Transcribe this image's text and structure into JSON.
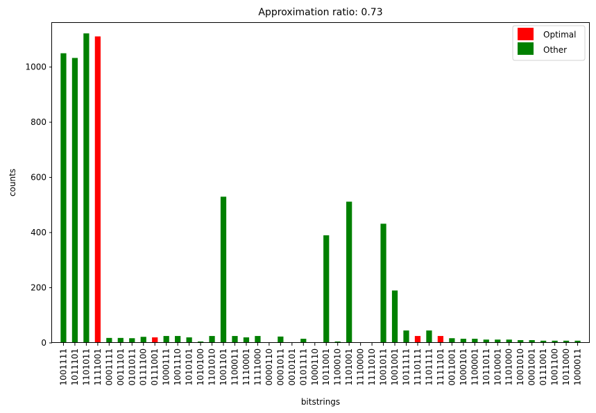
{
  "chart_data": {
    "type": "bar",
    "title": "Approximation ratio: 0.73",
    "xlabel": "bitstrings",
    "ylabel": "counts",
    "ylim": [
      0,
      1160
    ],
    "yticks": [
      0,
      200,
      400,
      600,
      800,
      1000
    ],
    "categories": [
      "1001111",
      "1011101",
      "1101011",
      "1111001",
      "0001111",
      "0011101",
      "0101011",
      "0111100",
      "0111001",
      "1000111",
      "1001110",
      "1010101",
      "1010100",
      "1101010",
      "1001101",
      "1100011",
      "1110001",
      "1111000",
      "0000110",
      "0001011",
      "0010101",
      "0101111",
      "1000110",
      "1011001",
      "1100010",
      "1101001",
      "1110000",
      "1111010",
      "1001011",
      "1001001",
      "1011111",
      "1110111",
      "1101111",
      "1111101",
      "0011001",
      "1000101",
      "1100001",
      "1011011",
      "1010001",
      "1101000",
      "1001010",
      "0001001",
      "0111001",
      "1001100",
      "1011000",
      "1000011"
    ],
    "values": [
      1050,
      1033,
      1122,
      1111,
      18,
      18,
      17,
      22,
      20,
      25,
      25,
      20,
      5,
      25,
      530,
      25,
      20,
      25,
      2,
      23,
      2,
      15,
      2,
      390,
      5,
      512,
      2,
      2,
      432,
      190,
      45,
      25,
      45,
      25,
      17,
      15,
      15,
      12,
      12,
      12,
      10,
      10,
      8,
      8,
      8,
      8
    ],
    "optimal": [
      false,
      false,
      false,
      true,
      false,
      false,
      false,
      false,
      true,
      false,
      false,
      false,
      false,
      false,
      false,
      false,
      false,
      false,
      false,
      false,
      false,
      false,
      false,
      false,
      false,
      false,
      false,
      false,
      false,
      false,
      false,
      true,
      false,
      true,
      false,
      false,
      false,
      false,
      false,
      false,
      false,
      false,
      false,
      false,
      false,
      false
    ],
    "colors": {
      "optimal": "#ff0000",
      "other": "#008000"
    },
    "legend": {
      "placement": "top-right",
      "entries": [
        {
          "label": "Optimal",
          "color": "#ff0000"
        },
        {
          "label": "Other",
          "color": "#008000"
        }
      ]
    },
    "grid": false
  }
}
